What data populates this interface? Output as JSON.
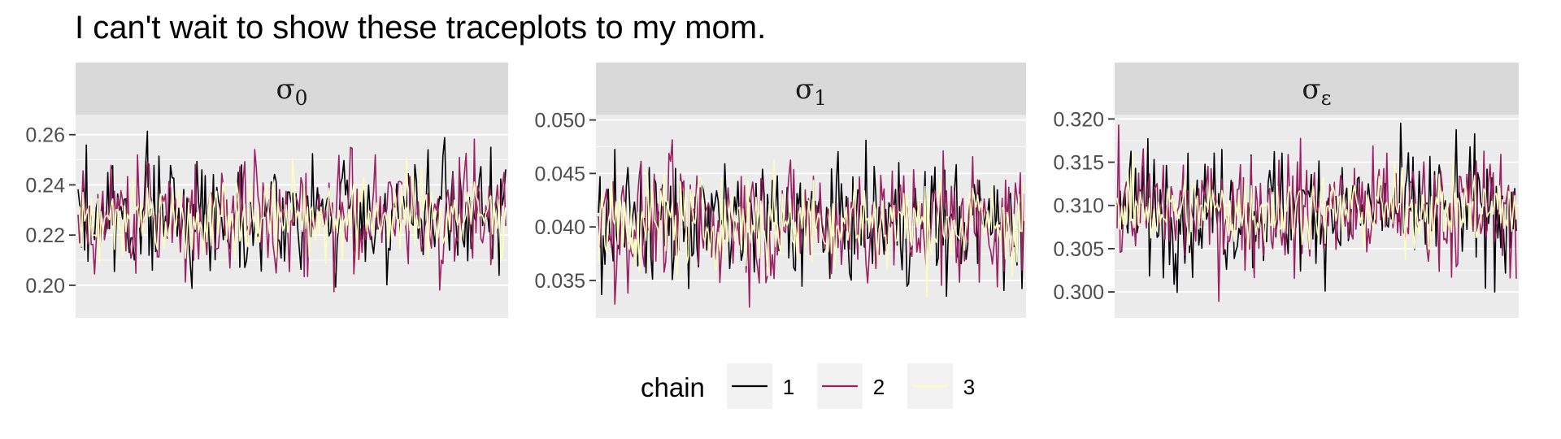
{
  "title": "I can't wait to show these traceplots to my mom.",
  "chart_data": [
    {
      "type": "line",
      "facet": "σ0",
      "ylim": [
        0.187,
        0.268
      ],
      "yticks": [
        {
          "value": 0.26,
          "label": "0.26"
        },
        {
          "value": 0.24,
          "label": "0.24"
        },
        {
          "value": 0.22,
          "label": "0.22"
        },
        {
          "value": 0.2,
          "label": "0.20"
        }
      ],
      "center": 0.228,
      "series": [
        {
          "chain": "1",
          "sd": 0.0115,
          "min": 0.193,
          "max": 0.263
        },
        {
          "chain": "2",
          "sd": 0.0115,
          "min": 0.193,
          "max": 0.263
        },
        {
          "chain": "3",
          "sd": 0.0085,
          "min": 0.191,
          "max": 0.256
        }
      ]
    },
    {
      "type": "line",
      "facet": "σ1",
      "ylim": [
        0.0315,
        0.0505
      ],
      "yticks": [
        {
          "value": 0.05,
          "label": "0.050"
        },
        {
          "value": 0.045,
          "label": "0.045"
        },
        {
          "value": 0.04,
          "label": "0.040"
        },
        {
          "value": 0.035,
          "label": "0.035"
        }
      ],
      "center": 0.0405,
      "series": [
        {
          "chain": "1",
          "sd": 0.0028,
          "min": 0.0333,
          "max": 0.0493
        },
        {
          "chain": "2",
          "sd": 0.003,
          "min": 0.0325,
          "max": 0.0495
        },
        {
          "chain": "3",
          "sd": 0.0022,
          "min": 0.0332,
          "max": 0.0488
        }
      ]
    },
    {
      "type": "line",
      "facet": "σε",
      "ylim": [
        0.297,
        0.3205
      ],
      "yticks": [
        {
          "value": 0.32,
          "label": "0.320"
        },
        {
          "value": 0.315,
          "label": "0.315"
        },
        {
          "value": 0.31,
          "label": "0.310"
        },
        {
          "value": 0.305,
          "label": "0.305"
        },
        {
          "value": 0.3,
          "label": "0.300"
        }
      ],
      "center": 0.3095,
      "series": [
        {
          "chain": "1",
          "sd": 0.0035,
          "min": 0.2978,
          "max": 0.3203
        },
        {
          "chain": "2",
          "sd": 0.0035,
          "min": 0.2975,
          "max": 0.3193
        },
        {
          "chain": "3",
          "sd": 0.0022,
          "min": 0.2982,
          "max": 0.3185
        }
      ]
    }
  ],
  "legend": {
    "title": "chain",
    "entries": [
      {
        "label": "1",
        "color": "#000004"
      },
      {
        "label": "2",
        "color": "#9a2163"
      },
      {
        "label": "3",
        "color": "#fcfdbf"
      }
    ]
  },
  "colors": {
    "panel_background": "#ebebeb",
    "strip_background": "#d9d9d9",
    "grid": "#ffffff"
  }
}
